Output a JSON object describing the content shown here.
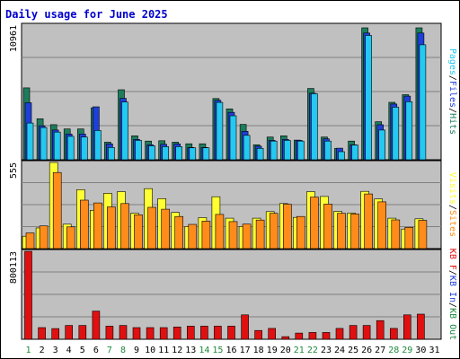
{
  "colors": {
    "background": "#ffffff",
    "plot_bg": "#c0c0c0",
    "grid": "#808080",
    "title": "#0000cc",
    "hits": "#1d7c5c",
    "files": "#1e3fd8",
    "pages": "#24c8f0",
    "visits": "#ffff33",
    "sites": "#ff8c1a",
    "kb": "#e01010",
    "weekend_label": "#1d8a3c",
    "weekday_label": "#000000"
  },
  "chart_data": {
    "title": "Daily usage for June 2025",
    "type": "bar",
    "x": [
      "1",
      "2",
      "3",
      "4",
      "5",
      "6",
      "7",
      "8",
      "9",
      "10",
      "11",
      "12",
      "13",
      "14",
      "15",
      "16",
      "17",
      "18",
      "19",
      "20",
      "21",
      "22",
      "23",
      "24",
      "25",
      "26",
      "27",
      "28",
      "29",
      "30",
      "31"
    ],
    "weekend_days": [
      "1",
      "7",
      "8",
      "14",
      "15",
      "21",
      "22",
      "28",
      "29"
    ],
    "panels": [
      {
        "name": "hits-files-pages",
        "ymax": 10961,
        "ymax_label": "10961",
        "legend": [
          {
            "text": "Pages",
            "color": "#24c8f0"
          },
          {
            "text": "/",
            "color": "#000000"
          },
          {
            "text": "Files",
            "color": "#1e3fd8"
          },
          {
            "text": "/",
            "color": "#000000"
          },
          {
            "text": "Hits",
            "color": "#1d7c5c"
          }
        ],
        "series": [
          {
            "name": "Hits",
            "color": "#1d7c5c",
            "values": [
              5850,
              3340,
              2860,
              2510,
              2510,
              4230,
              1430,
              5700,
              1950,
              1520,
              1550,
              1430,
              1300,
              1300,
              4980,
              4140,
              2880,
              1220,
              1850,
              1950,
              1600,
              5800,
              1850,
              930,
              1520,
              10740,
              3100,
              4680,
              5300,
              10740,
              0
            ]
          },
          {
            "name": "Files",
            "color": "#1e3fd8",
            "values": [
              4640,
              2770,
              2420,
              2090,
              2090,
              4310,
              1290,
              5000,
              1660,
              1220,
              1260,
              1290,
              1000,
              1000,
              4840,
              3860,
              2320,
              1100,
              1580,
              1660,
              1580,
              5420,
              1700,
              940,
              1220,
              10320,
              2850,
              4540,
              5180,
              10320,
              0
            ]
          },
          {
            "name": "Pages",
            "color": "#24c8f0",
            "values": [
              2990,
              2620,
              2250,
              1910,
              1850,
              2380,
              1000,
              4700,
              1580,
              1130,
              1070,
              1070,
              970,
              970,
              4670,
              3580,
              1990,
              930,
              1520,
              1580,
              1520,
              5380,
              1520,
              660,
              1200,
              10120,
              2420,
              4280,
              4730,
              9360,
              0
            ]
          }
        ]
      },
      {
        "name": "visits-sites",
        "ymax": 555,
        "ymax_label": "555",
        "legend": [
          {
            "text": "Visits",
            "color": "#ffff33"
          },
          {
            "text": "/",
            "color": "#000000"
          },
          {
            "text": "Sites",
            "color": "#ff8c1a"
          }
        ],
        "series": [
          {
            "name": "Visits",
            "color": "#ffff33",
            "values": [
              80,
              133,
              555,
              157,
              380,
              247,
              356,
              367,
              228,
              386,
              322,
              233,
              142,
              200,
              334,
              196,
              142,
              196,
              238,
              290,
              201,
              367,
              336,
              240,
              229,
              369,
              320,
              196,
              126,
              192,
              0
            ]
          },
          {
            "name": "Sites",
            "color": "#ff8c1a",
            "values": [
              101,
              146,
              490,
              140,
              312,
              294,
              269,
              290,
              218,
              266,
              254,
              207,
              156,
              177,
              220,
              174,
              158,
              184,
              227,
              286,
              207,
              332,
              287,
              227,
              223,
              352,
              301,
              185,
              137,
              182,
              0
            ]
          }
        ]
      },
      {
        "name": "kb",
        "ymax": 800113,
        "ymax_label": "800113",
        "legend": [
          {
            "text": "KB F",
            "color": "#e01010"
          },
          {
            "text": "/",
            "color": "#000000"
          },
          {
            "text": "KB In",
            "color": "#1e3fd8"
          },
          {
            "text": "/",
            "color": "#000000"
          },
          {
            "text": "KB Out",
            "color": "#1d8a3c"
          }
        ],
        "series": [
          {
            "name": "KB F",
            "color": "#e01010",
            "values": [
              800113,
              106000,
              97000,
              126000,
              126000,
              256000,
              119000,
              126000,
              106000,
              106000,
              106000,
              112000,
              119000,
              119000,
              119000,
              119000,
              222000,
              80000,
              99000,
              24000,
              56000,
              62000,
              62000,
              99000,
              126000,
              126000,
              170000,
              99000,
              222000,
              229000,
              0
            ]
          }
        ]
      }
    ]
  }
}
